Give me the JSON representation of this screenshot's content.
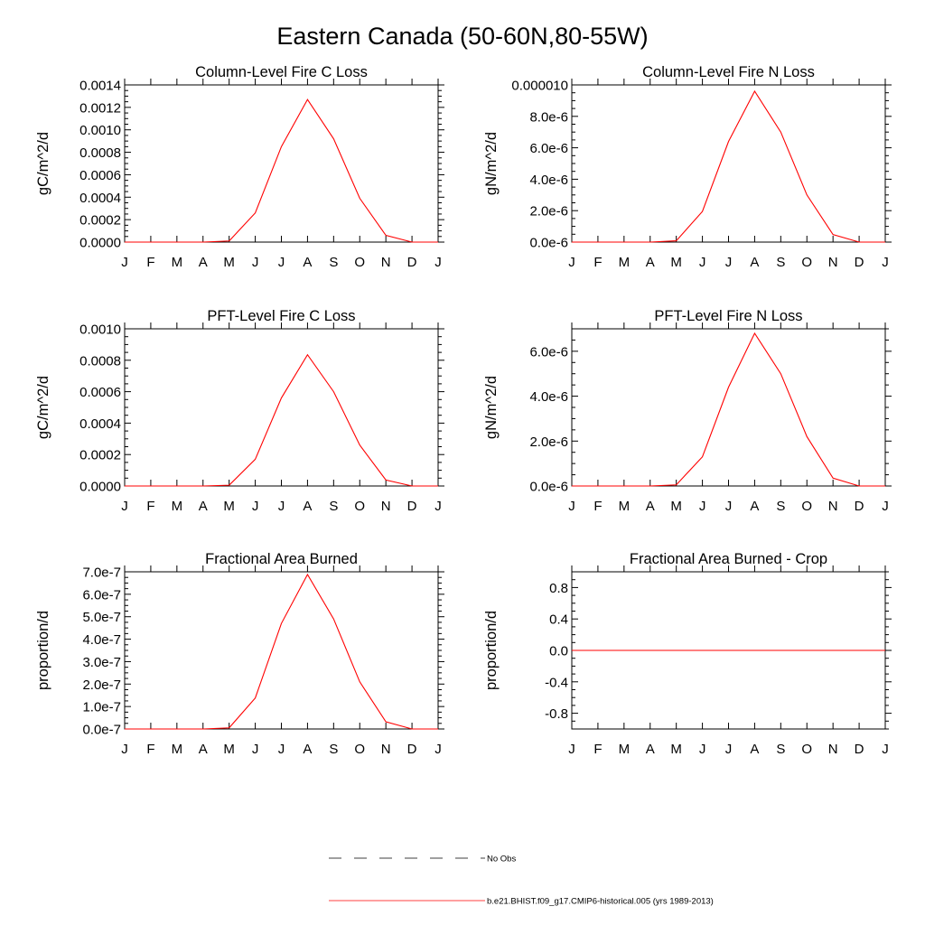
{
  "figure": {
    "title": "Eastern Canada (50-60N,80-55W)"
  },
  "colors": {
    "model": "#ff0000",
    "obs": "#000000",
    "axis": "#000000"
  },
  "chart_data": [
    {
      "type": "line",
      "title": "Column-Level Fire C Loss",
      "ylabel": "gC/m^2/d",
      "xlabel": "",
      "categories": [
        "J",
        "F",
        "M",
        "A",
        "M",
        "J",
        "J",
        "A",
        "S",
        "O",
        "N",
        "D",
        "J"
      ],
      "ylim": [
        0,
        0.0014
      ],
      "yticks": [
        0,
        0.0002,
        0.0004,
        0.0006,
        0.0008,
        0.001,
        0.0012,
        0.0014
      ],
      "yticklabels": [
        "0.0000",
        "0.0002",
        "0.0004",
        "0.0006",
        "0.0008",
        "0.0010",
        "0.0012",
        "0.0014"
      ],
      "series": [
        {
          "name": "b.e21.BHIST.f09_g17.CMIP6-historical.005 (yrs 1989-2013)",
          "values": [
            0,
            0,
            0,
            0,
            1e-05,
            0.00026,
            0.00085,
            0.00127,
            0.00092,
            0.00039,
            6e-05,
            0,
            0
          ]
        }
      ]
    },
    {
      "type": "line",
      "title": "Column-Level Fire N Loss",
      "ylabel": "gN/m^2/d",
      "xlabel": "",
      "categories": [
        "J",
        "F",
        "M",
        "A",
        "M",
        "J",
        "J",
        "A",
        "S",
        "O",
        "N",
        "D",
        "J"
      ],
      "ylim": [
        0,
        1e-05
      ],
      "yticks": [
        0,
        2e-06,
        4e-06,
        6e-06,
        8e-06,
        1e-05
      ],
      "yticklabels": [
        "0.0e-6",
        "2.0e-6",
        "4.0e-6",
        "6.0e-6",
        "8.0e-6",
        "0.000010"
      ],
      "series": [
        {
          "name": "b.e21.BHIST.f09_g17.CMIP6-historical.005 (yrs 1989-2013)",
          "values": [
            0,
            0,
            0,
            0,
            8e-08,
            1.95e-06,
            6.4e-06,
            9.6e-06,
            7e-06,
            3e-06,
            4.8e-07,
            0,
            0
          ]
        }
      ]
    },
    {
      "type": "line",
      "title": "PFT-Level Fire C Loss",
      "ylabel": "gC/m^2/d",
      "xlabel": "",
      "categories": [
        "J",
        "F",
        "M",
        "A",
        "M",
        "J",
        "J",
        "A",
        "S",
        "O",
        "N",
        "D",
        "J"
      ],
      "ylim": [
        0,
        0.001
      ],
      "yticks": [
        0,
        0.0002,
        0.0004,
        0.0006,
        0.0008,
        0.001
      ],
      "yticklabels": [
        "0.0000",
        "0.0002",
        "0.0004",
        "0.0006",
        "0.0008",
        "0.0010"
      ],
      "series": [
        {
          "name": "b.e21.BHIST.f09_g17.CMIP6-historical.005 (yrs 1989-2013)",
          "values": [
            0,
            0,
            0,
            0,
            5e-06,
            0.00017,
            0.00056,
            0.000835,
            0.0006,
            0.00026,
            3.8e-05,
            0,
            0
          ]
        }
      ]
    },
    {
      "type": "line",
      "title": "PFT-Level Fire N Loss",
      "ylabel": "gN/m^2/d",
      "xlabel": "",
      "categories": [
        "J",
        "F",
        "M",
        "A",
        "M",
        "J",
        "J",
        "A",
        "S",
        "O",
        "N",
        "D",
        "J"
      ],
      "ylim": [
        0,
        7e-06
      ],
      "yticks": [
        0,
        2e-06,
        4e-06,
        6e-06
      ],
      "yticklabels": [
        "0.0e-6",
        "2.0e-6",
        "4.0e-6",
        "6.0e-6"
      ],
      "series": [
        {
          "name": "b.e21.BHIST.f09_g17.CMIP6-historical.005 (yrs 1989-2013)",
          "values": [
            0,
            0,
            0,
            0,
            5e-08,
            1.3e-06,
            4.4e-06,
            6.8e-06,
            5e-06,
            2.2e-06,
            3.5e-07,
            0,
            0
          ]
        }
      ]
    },
    {
      "type": "line",
      "title": "Fractional Area Burned",
      "ylabel": "proportion/d",
      "xlabel": "",
      "categories": [
        "J",
        "F",
        "M",
        "A",
        "M",
        "J",
        "J",
        "A",
        "S",
        "O",
        "N",
        "D",
        "J"
      ],
      "ylim": [
        0,
        7e-07
      ],
      "yticks": [
        0,
        1e-07,
        2e-07,
        3e-07,
        4e-07,
        5e-07,
        6e-07,
        7e-07
      ],
      "yticklabels": [
        "0.0e-7",
        "1.0e-7",
        "2.0e-7",
        "3.0e-7",
        "4.0e-7",
        "5.0e-7",
        "6.0e-7",
        "7.0e-7"
      ],
      "series": [
        {
          "name": "b.e21.BHIST.f09_g17.CMIP6-historical.005 (yrs 1989-2013)",
          "values": [
            0,
            0,
            0,
            0,
            5e-09,
            1.38e-07,
            4.7e-07,
            6.88e-07,
            4.9e-07,
            2.1e-07,
            3.2e-08,
            0,
            0
          ]
        }
      ]
    },
    {
      "type": "line",
      "title": "Fractional Area Burned - Crop",
      "ylabel": "proportion/d",
      "xlabel": "",
      "categories": [
        "J",
        "F",
        "M",
        "A",
        "M",
        "J",
        "J",
        "A",
        "S",
        "O",
        "N",
        "D",
        "J"
      ],
      "ylim": [
        -1,
        1
      ],
      "yticks": [
        -0.8,
        -0.4,
        0,
        0.4,
        0.8
      ],
      "yticklabels": [
        "-0.8",
        "-0.4",
        "0.0",
        "0.4",
        "0.8"
      ],
      "series": [
        {
          "name": "b.e21.BHIST.f09_g17.CMIP6-historical.005 (yrs 1989-2013)",
          "values": [
            0,
            0,
            0,
            0,
            0,
            0,
            0,
            0,
            0,
            0,
            0,
            0,
            0
          ]
        }
      ]
    }
  ],
  "legend": {
    "items": [
      {
        "label": "No Obs",
        "style": "dashed"
      },
      {
        "label": "b.e21.BHIST.f09_g17.CMIP6-historical.005 (yrs 1989-2013)",
        "style": "solid"
      }
    ]
  }
}
